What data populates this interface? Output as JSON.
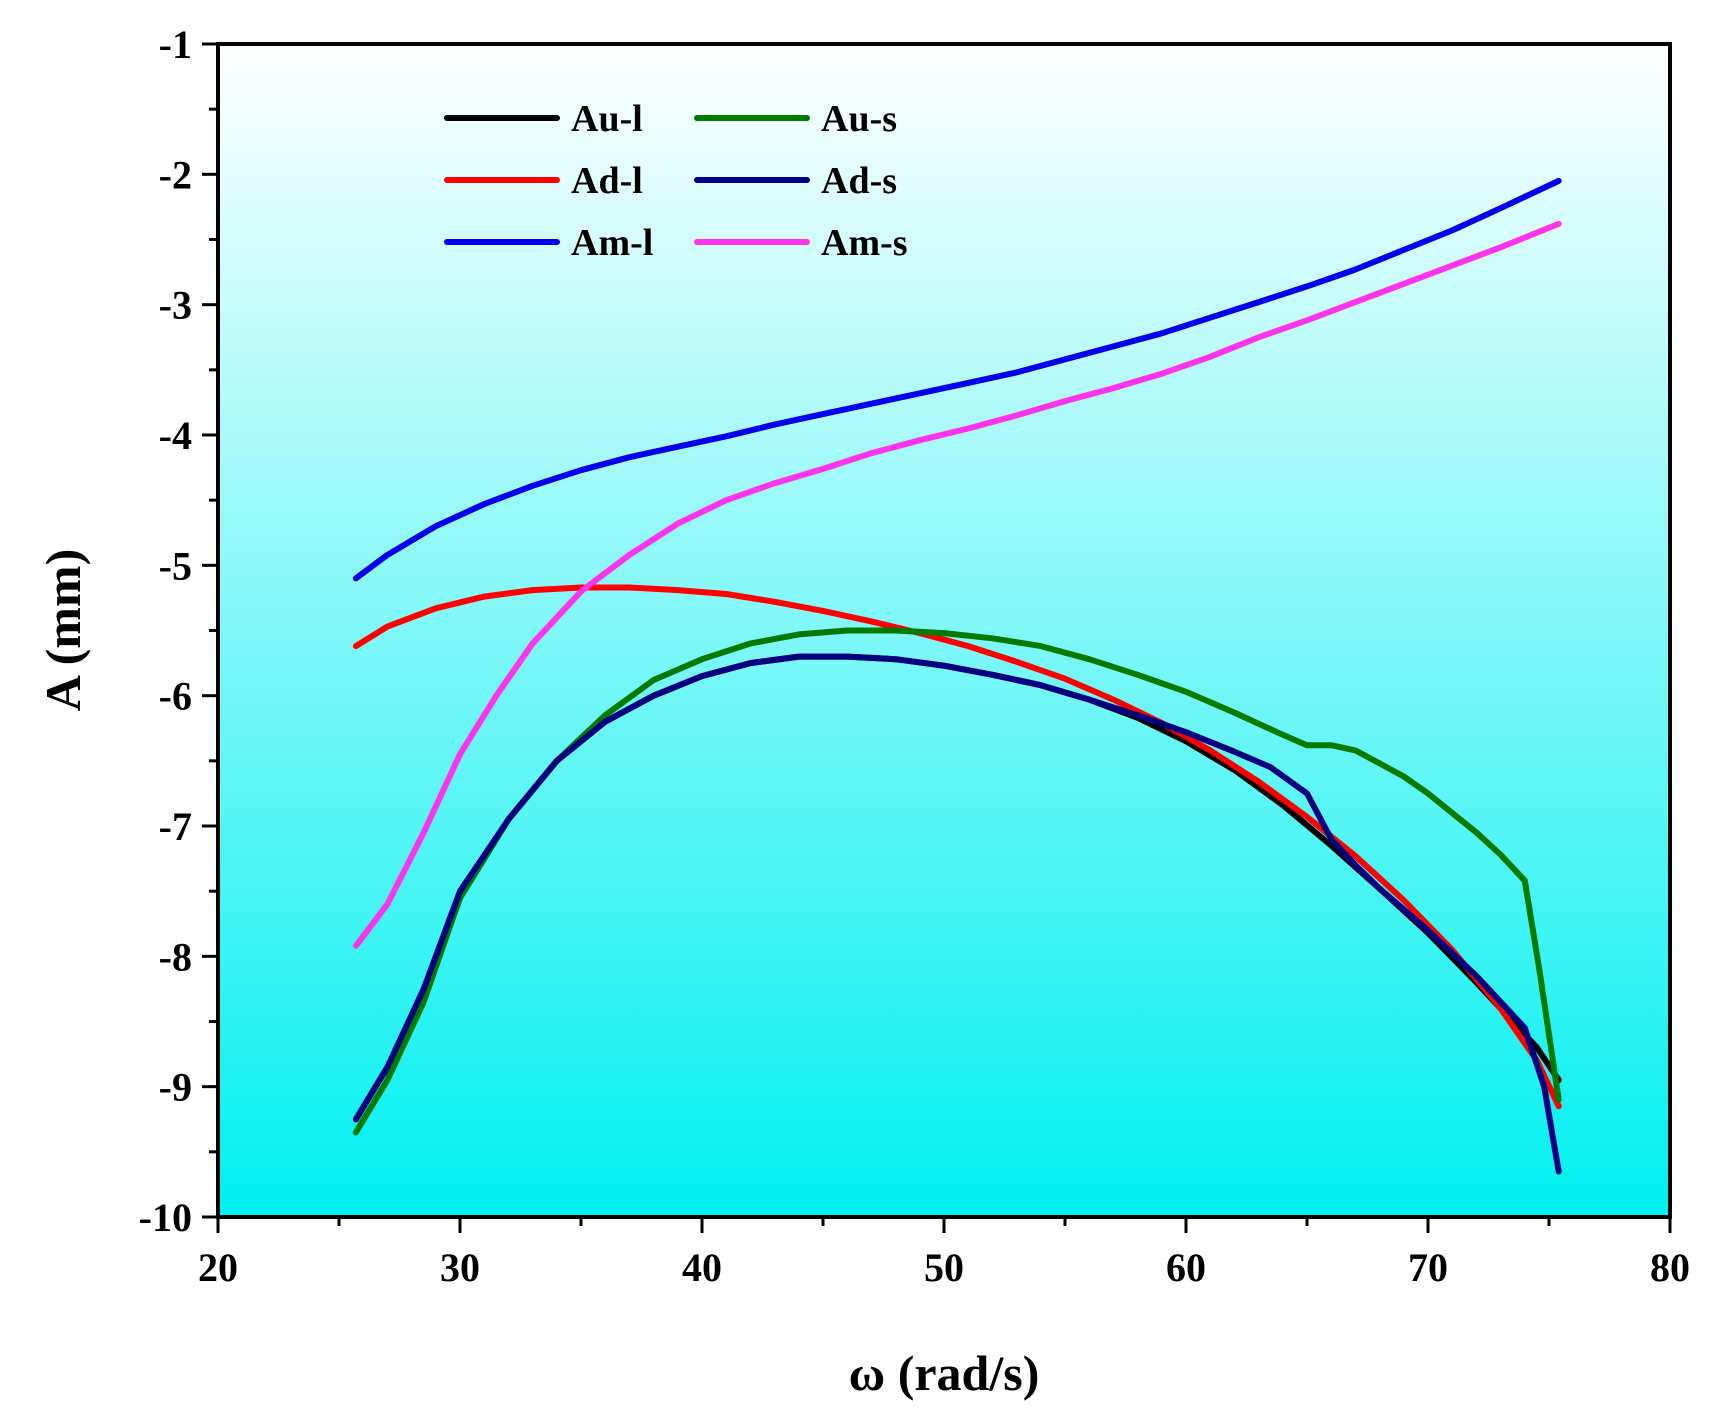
{
  "chart_data": {
    "type": "line",
    "title": "",
    "xlabel": "ω (rad/s)",
    "ylabel": "A (mm)",
    "xlim": [
      20,
      80
    ],
    "ylim": [
      -10,
      -1
    ],
    "xticks": [
      20,
      30,
      40,
      50,
      60,
      70,
      80
    ],
    "yticks": [
      -10,
      -9,
      -8,
      -7,
      -6,
      -5,
      -4,
      -3,
      -2,
      -1
    ],
    "legend_position": "top-left",
    "background": {
      "top": "#ffffff",
      "bottom": "#00f0f0"
    },
    "series": [
      {
        "name": "Au-l",
        "color": "#000000",
        "x": [
          25.7,
          27.0,
          28.5,
          30.0,
          32.0,
          34.0,
          36.0,
          38.0,
          40.0,
          42.0,
          44.0,
          46.0,
          48.0,
          50.0,
          52.0,
          54.0,
          56.0,
          58.0,
          60.0,
          62.0,
          64.0,
          66.0,
          68.0,
          70.0,
          72.0,
          73.5,
          74.5,
          75.4
        ],
        "y": [
          -9.25,
          -8.85,
          -8.3,
          -7.55,
          -6.95,
          -6.5,
          -6.2,
          -6.0,
          -5.85,
          -5.75,
          -5.7,
          -5.7,
          -5.72,
          -5.77,
          -5.84,
          -5.92,
          -6.03,
          -6.17,
          -6.35,
          -6.57,
          -6.84,
          -7.15,
          -7.48,
          -7.82,
          -8.2,
          -8.5,
          -8.7,
          -8.95
        ]
      },
      {
        "name": "Ad-l",
        "color": "#ff0000",
        "x": [
          25.7,
          27.0,
          29.0,
          31.0,
          33.0,
          35.0,
          37.0,
          39.0,
          41.0,
          43.0,
          45.0,
          47.0,
          49.0,
          51.0,
          53.0,
          55.0,
          57.0,
          59.0,
          61.0,
          63.0,
          65.0,
          67.0,
          69.0,
          71.0,
          73.0,
          74.5,
          75.4
        ],
        "y": [
          -5.62,
          -5.47,
          -5.33,
          -5.24,
          -5.19,
          -5.17,
          -5.17,
          -5.19,
          -5.22,
          -5.28,
          -5.35,
          -5.43,
          -5.52,
          -5.62,
          -5.74,
          -5.87,
          -6.03,
          -6.21,
          -6.42,
          -6.66,
          -6.93,
          -7.23,
          -7.57,
          -7.95,
          -8.4,
          -8.8,
          -9.15
        ]
      },
      {
        "name": "Am-l",
        "color": "#0000ee",
        "x": [
          25.7,
          27.0,
          29.0,
          31.0,
          33.0,
          35.0,
          37.0,
          39.0,
          41.0,
          43.0,
          45.0,
          47.0,
          49.0,
          51.0,
          53.0,
          55.0,
          57.0,
          59.0,
          61.0,
          63.0,
          65.0,
          67.0,
          69.0,
          71.0,
          73.0,
          75.4
        ],
        "y": [
          -5.1,
          -4.92,
          -4.7,
          -4.53,
          -4.39,
          -4.27,
          -4.17,
          -4.09,
          -4.01,
          -3.92,
          -3.84,
          -3.76,
          -3.68,
          -3.6,
          -3.52,
          -3.42,
          -3.32,
          -3.22,
          -3.1,
          -2.98,
          -2.86,
          -2.73,
          -2.58,
          -2.43,
          -2.26,
          -2.05
        ]
      },
      {
        "name": "Au-s",
        "color": "#007a00",
        "x": [
          25.7,
          27.0,
          28.5,
          30.0,
          32.0,
          34.0,
          36.0,
          38.0,
          40.0,
          42.0,
          44.0,
          46.0,
          48.0,
          50.0,
          52.0,
          54.0,
          56.0,
          58.0,
          60.0,
          62.0,
          64.0,
          65.0,
          66.0,
          67.0,
          68.0,
          69.0,
          70.0,
          71.0,
          72.0,
          73.0,
          74.0,
          74.6,
          75.0,
          75.4
        ],
        "y": [
          -9.35,
          -8.95,
          -8.35,
          -7.55,
          -6.95,
          -6.5,
          -6.15,
          -5.88,
          -5.72,
          -5.6,
          -5.53,
          -5.5,
          -5.5,
          -5.52,
          -5.56,
          -5.62,
          -5.72,
          -5.84,
          -5.97,
          -6.13,
          -6.3,
          -6.38,
          -6.38,
          -6.42,
          -6.52,
          -6.62,
          -6.75,
          -6.9,
          -7.05,
          -7.22,
          -7.42,
          -8.1,
          -8.6,
          -9.1
        ]
      },
      {
        "name": "Ad-s",
        "color": "#000080",
        "x": [
          25.7,
          27.0,
          28.5,
          30.0,
          32.0,
          34.0,
          36.0,
          38.0,
          40.0,
          42.0,
          44.0,
          46.0,
          48.0,
          50.0,
          52.0,
          54.0,
          56.0,
          58.0,
          60.0,
          62.0,
          63.5,
          65.0,
          66.0,
          67.0,
          68.0,
          70.0,
          72.0,
          73.0,
          74.0,
          74.8,
          75.4
        ],
        "y": [
          -9.25,
          -8.85,
          -8.25,
          -7.5,
          -6.95,
          -6.5,
          -6.2,
          -6.0,
          -5.85,
          -5.75,
          -5.7,
          -5.7,
          -5.72,
          -5.77,
          -5.84,
          -5.92,
          -6.03,
          -6.15,
          -6.28,
          -6.43,
          -6.55,
          -6.75,
          -7.1,
          -7.3,
          -7.48,
          -7.8,
          -8.15,
          -8.35,
          -8.55,
          -9.0,
          -9.65
        ]
      },
      {
        "name": "Am-s",
        "color": "#ff33ee",
        "x": [
          25.7,
          27.0,
          28.5,
          30.0,
          31.5,
          33.0,
          35.0,
          37.0,
          39.0,
          41.0,
          43.0,
          45.0,
          47.0,
          49.0,
          51.0,
          53.0,
          55.0,
          57.0,
          59.0,
          61.0,
          63.0,
          65.0,
          67.0,
          69.0,
          71.0,
          73.0,
          75.4
        ],
        "y": [
          -7.92,
          -7.6,
          -7.05,
          -6.45,
          -6.0,
          -5.6,
          -5.2,
          -4.92,
          -4.68,
          -4.5,
          -4.37,
          -4.26,
          -4.14,
          -4.04,
          -3.95,
          -3.85,
          -3.74,
          -3.64,
          -3.53,
          -3.4,
          -3.25,
          -3.12,
          -2.98,
          -2.84,
          -2.7,
          -2.56,
          -2.38
        ]
      }
    ]
  }
}
